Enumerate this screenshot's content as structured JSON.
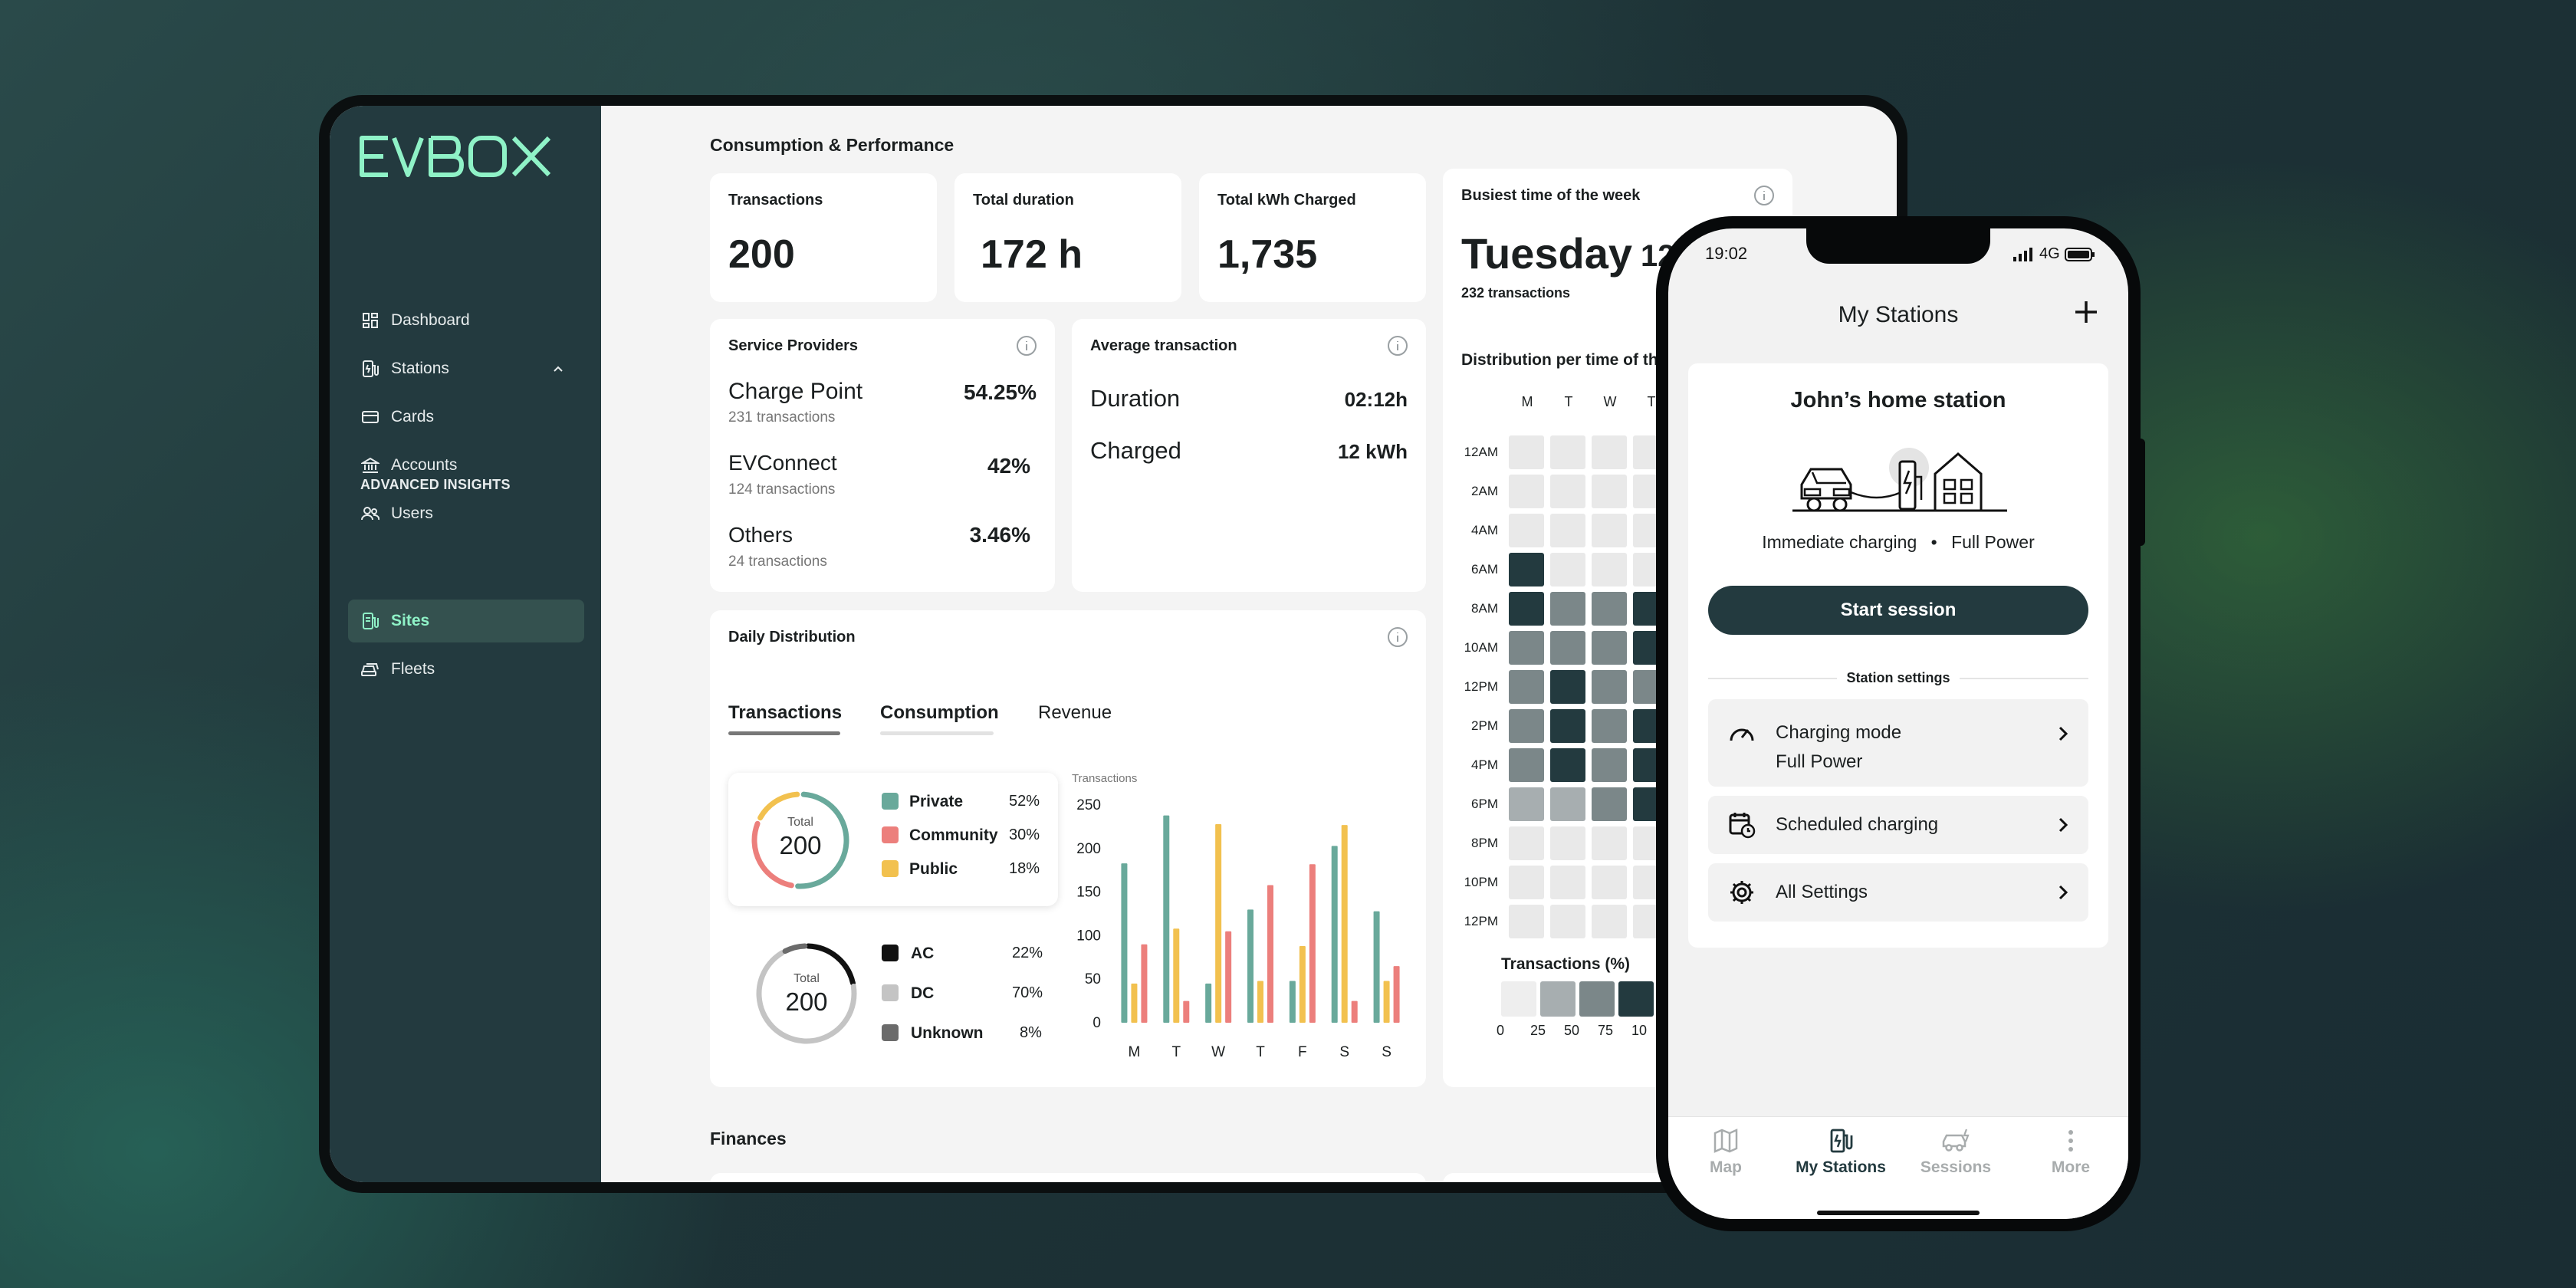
{
  "colors": {
    "sidebar": "#233a3f",
    "accent": "#8ff2c7",
    "private": "#69a99b",
    "community": "#ec7f7c",
    "public": "#f2c14f",
    "dark": "#233a3f"
  },
  "sidebar": {
    "logo": "EVBOX",
    "items": [
      {
        "label": "Dashboard",
        "icon": "dashboard-icon"
      },
      {
        "label": "Stations",
        "icon": "station-icon"
      },
      {
        "label": "Cards",
        "icon": "card-icon"
      },
      {
        "label": "Accounts",
        "icon": "bank-icon"
      },
      {
        "label": "Users",
        "icon": "users-icon"
      }
    ],
    "section": "ADVANCED INSIGHTS",
    "insights": [
      {
        "label": "Sites",
        "icon": "sites-icon",
        "active": true
      },
      {
        "label": "Fleets",
        "icon": "fleet-icon"
      }
    ]
  },
  "main": {
    "section_title": "Consumption & Performance",
    "finances_title": "Finances",
    "kpis": [
      {
        "label": "Transactions",
        "value": "200"
      },
      {
        "label": "Total duration",
        "value": "172 h"
      },
      {
        "label": "Total kWh Charged",
        "value": "1,735"
      }
    ],
    "busiest": {
      "label": "Busiest time of the week",
      "day": "Tuesday",
      "time": "12",
      "sub": "232 transactions"
    },
    "providers": {
      "label": "Service Providers",
      "items": [
        {
          "name": "Charge Point",
          "sub": "231 transactions",
          "pct": "54.25%"
        },
        {
          "name": "EVConnect",
          "sub": "124 transactions",
          "pct": "42%"
        },
        {
          "name": "Others",
          "sub": "24 transactions",
          "pct": "3.46%"
        }
      ]
    },
    "average": {
      "label": "Average transaction",
      "rows": [
        {
          "label": "Duration",
          "value": "02:12h"
        },
        {
          "label": "Charged",
          "value": "12 kWh"
        }
      ]
    },
    "daily": {
      "label": "Daily Distribution",
      "tabs": [
        "Transactions",
        "Consumption",
        "Revenue"
      ],
      "donut1": {
        "total_label": "Total",
        "total": "200",
        "items": [
          {
            "label": "Private",
            "pct": "52%",
            "value": 52,
            "color": "#69a99b"
          },
          {
            "label": "Community",
            "pct": "30%",
            "value": 30,
            "color": "#ec7f7c"
          },
          {
            "label": "Public",
            "pct": "18%",
            "value": 18,
            "color": "#f2c14f"
          }
        ]
      },
      "donut2": {
        "total_label": "Total",
        "total": "200",
        "items": [
          {
            "label": "AC",
            "pct": "22%",
            "value": 22,
            "color": "#111111"
          },
          {
            "label": "DC",
            "pct": "70%",
            "value": 70,
            "color": "#c4c4c4"
          },
          {
            "label": "Unknown",
            "pct": "8%",
            "value": 8,
            "color": "#6b6b6b"
          }
        ]
      }
    },
    "distribution": {
      "label": "Distribution per time of th",
      "days": [
        "M",
        "T",
        "W",
        "T"
      ],
      "times": [
        "12AM",
        "2AM",
        "4AM",
        "6AM",
        "8AM",
        "10AM",
        "12PM",
        "2PM",
        "4PM",
        "6PM",
        "8PM",
        "10PM",
        "12PM"
      ],
      "scale_title": "Transactions (%)",
      "scale_labels": [
        "0",
        "25",
        "50",
        "75",
        "10"
      ]
    }
  },
  "chart_data": {
    "type": "bar",
    "ylabel": "Transactions",
    "categories": [
      "M",
      "T",
      "W",
      "T",
      "F",
      "S",
      "S"
    ],
    "ylim": [
      0,
      250
    ],
    "yticks": [
      0,
      50,
      100,
      150,
      200,
      250
    ],
    "series": [
      {
        "name": "Private",
        "color": "#69a99b",
        "values": [
          183,
          238,
          45,
          130,
          48,
          203,
          128
        ]
      },
      {
        "name": "Public",
        "color": "#f2c14f",
        "values": [
          45,
          108,
          228,
          48,
          88,
          227,
          48
        ]
      },
      {
        "name": "Community",
        "color": "#ec7f7c",
        "values": [
          90,
          25,
          105,
          158,
          182,
          25,
          65
        ]
      }
    ]
  },
  "heatmap": [
    [
      0,
      0,
      0,
      0
    ],
    [
      0,
      0,
      0,
      0
    ],
    [
      0,
      0,
      0,
      0
    ],
    [
      95,
      0,
      0,
      0
    ],
    [
      95,
      55,
      55,
      90
    ],
    [
      55,
      55,
      55,
      90
    ],
    [
      55,
      95,
      55,
      55
    ],
    [
      55,
      95,
      55,
      90
    ],
    [
      55,
      95,
      55,
      90
    ],
    [
      30,
      30,
      55,
      90
    ],
    [
      0,
      0,
      0,
      0
    ],
    [
      0,
      0,
      0,
      0
    ],
    [
      0,
      0,
      0,
      0
    ]
  ],
  "phone": {
    "time": "19:02",
    "network": "4G",
    "title": "My Stations",
    "station_name": "John’s home station",
    "mode": "Immediate charging",
    "power": "Full Power",
    "start_button": "Start session",
    "settings_title": "Station settings",
    "settings": [
      {
        "label": "Charging mode",
        "sub": "Full Power",
        "icon": "speedometer-icon"
      },
      {
        "label": "Scheduled charging",
        "icon": "calendar-clock-icon"
      },
      {
        "label": "All Settings",
        "icon": "gear-icon"
      }
    ],
    "nav": [
      {
        "label": "Map",
        "icon": "map-icon"
      },
      {
        "label": "My Stations",
        "icon": "station-icon",
        "active": true
      },
      {
        "label": "Sessions",
        "icon": "car-icon"
      },
      {
        "label": "More",
        "icon": "more-icon"
      }
    ]
  }
}
